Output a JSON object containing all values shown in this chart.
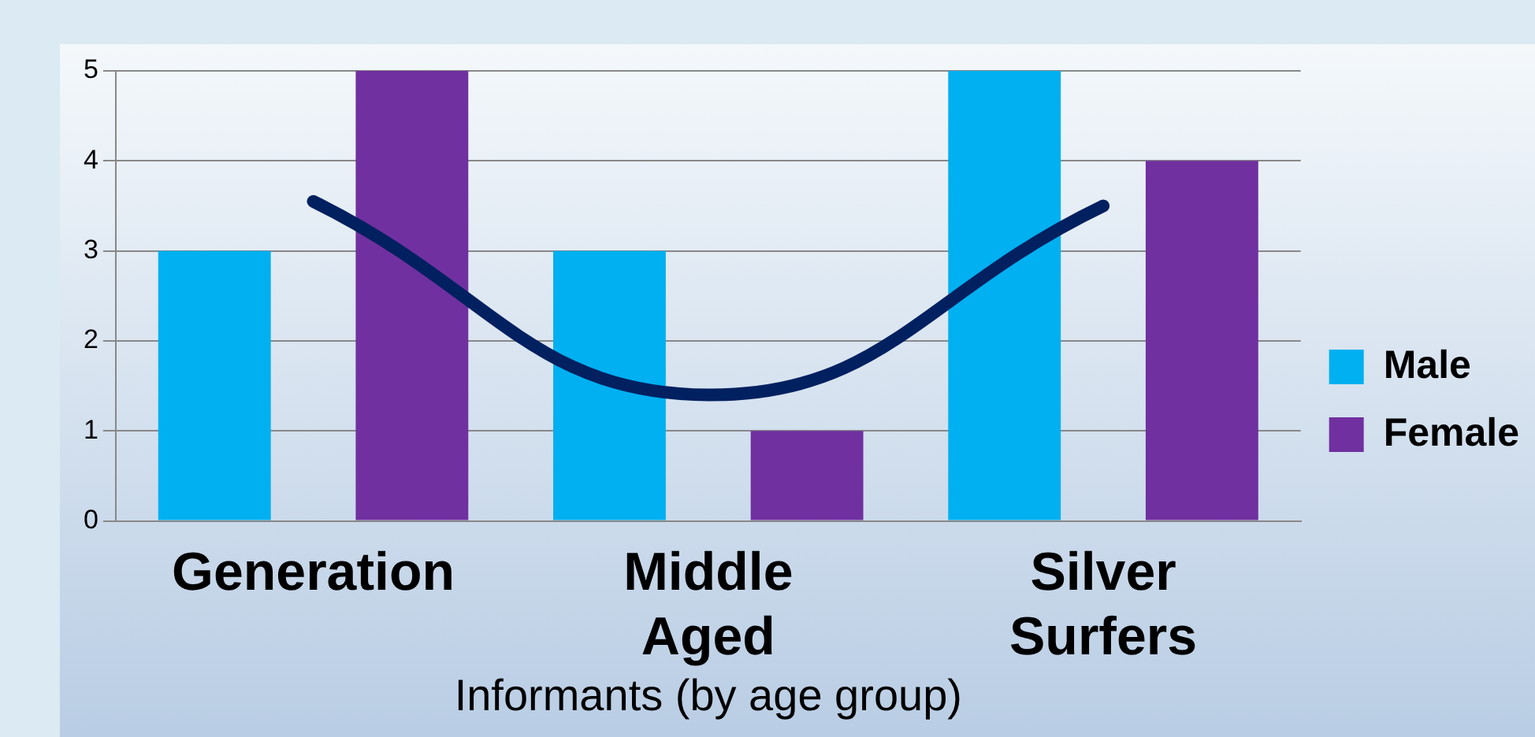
{
  "chart_data": {
    "type": "bar",
    "xlabel": "Informants (by age group)",
    "categories": [
      "Generation",
      "Middle Aged",
      "Silver Surfers"
    ],
    "series": [
      {
        "name": "Male",
        "color": "#00b0f0",
        "values": [
          3,
          3,
          5
        ]
      },
      {
        "name": "Female",
        "color": "#7030a0",
        "values": [
          5,
          1,
          4
        ]
      },
      {
        "type": "line",
        "color": "#002060",
        "values": [
          3.55,
          1.4,
          3.5
        ]
      }
    ],
    "ylim": [
      0,
      5
    ],
    "yticks": [
      0,
      1,
      2,
      3,
      4,
      5
    ],
    "grid": "y",
    "legend": "right",
    "marker": "none"
  }
}
